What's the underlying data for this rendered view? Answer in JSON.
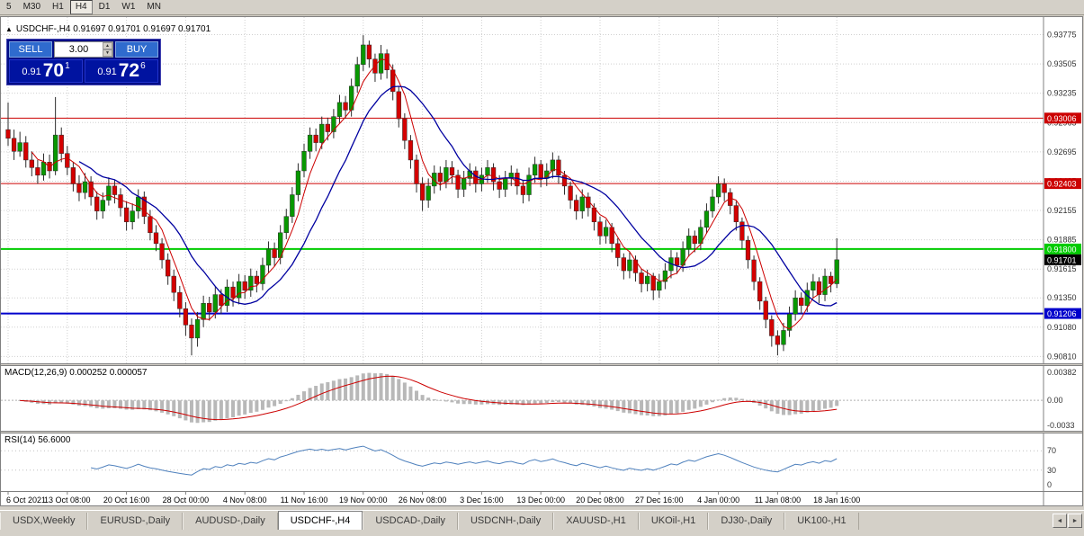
{
  "toolbar": {
    "timeframes": [
      {
        "label": "5",
        "active": false
      },
      {
        "label": "M30",
        "active": false
      },
      {
        "label": "H1",
        "active": false
      },
      {
        "label": "H4",
        "active": true
      },
      {
        "label": "D1",
        "active": false
      },
      {
        "label": "W1",
        "active": false
      },
      {
        "label": "MN",
        "active": false
      }
    ]
  },
  "chart": {
    "ohlc_line": "USDCHF-,H4 0.91697 0.91701 0.91697 0.91701"
  },
  "trade_panel": {
    "sell_label": "SELL",
    "buy_label": "BUY",
    "volume": "3.00",
    "bid_prefix": "0.91",
    "bid_big": "70",
    "bid_sup": "1",
    "ask_prefix": "0.91",
    "ask_big": "72",
    "ask_sup": "6"
  },
  "icons": {
    "collapse": "▲",
    "scroll_left": "◄",
    "scroll_right": "►",
    "spin_up": "▲",
    "spin_down": "▼"
  },
  "price_axis": {
    "labels": [
      "0.93775",
      "0.93505",
      "0.93235",
      "0.92965",
      "0.92695",
      "0.92425",
      "0.92155",
      "0.91885",
      "0.91615",
      "0.91350",
      "0.91080",
      "0.90810"
    ]
  },
  "hlines": [
    {
      "value": 0.93006,
      "label": "0.93006",
      "color": "#cc0000",
      "width": 1
    },
    {
      "value": 0.92403,
      "label": "0.92403",
      "color": "#cc0000",
      "width": 1
    },
    {
      "value": 0.918,
      "label": "0.91800",
      "color": "#00cc00",
      "width": 2
    },
    {
      "value": 0.91206,
      "label": "0.91206",
      "color": "#0000cc",
      "width": 2
    }
  ],
  "current_price": {
    "value": 0.91701,
    "label": "0.91701",
    "color": "#000000"
  },
  "time_axis": {
    "labels": [
      {
        "text": "6 Oct 2021",
        "index": 0
      },
      {
        "text": "13 Oct 08:00",
        "index": 10
      },
      {
        "text": "20 Oct 16:00",
        "index": 20
      },
      {
        "text": "28 Oct 00:00",
        "index": 30
      },
      {
        "text": "4 Nov 08:00",
        "index": 40
      },
      {
        "text": "11 Nov 16:00",
        "index": 50
      },
      {
        "text": "19 Nov 00:00",
        "index": 60
      },
      {
        "text": "26 Nov 08:00",
        "index": 70
      },
      {
        "text": "3 Dec 16:00",
        "index": 80
      },
      {
        "text": "13 Dec 00:00",
        "index": 90
      },
      {
        "text": "20 Dec 08:00",
        "index": 100
      },
      {
        "text": "27 Dec 16:00",
        "index": 110
      },
      {
        "text": "4 Jan 00:00",
        "index": 120
      },
      {
        "text": "11 Jan 08:00",
        "index": 130
      },
      {
        "text": "18 Jan 16:00",
        "index": 140
      }
    ]
  },
  "indicators": {
    "macd": {
      "header": "MACD(12,26,9) 0.000252 0.000057",
      "axis_labels": [
        "0.00382",
        "0.00",
        "-0.0033"
      ]
    },
    "rsi": {
      "header": "RSI(14) 56.6000",
      "axis_labels": [
        "70",
        "30",
        "0"
      ],
      "levels": [
        70,
        30
      ]
    }
  },
  "tabs": {
    "items": [
      {
        "label": "USDX,Weekly",
        "active": false
      },
      {
        "label": "EURUSD-,Daily",
        "active": false
      },
      {
        "label": "AUDUSD-,Daily",
        "active": false
      },
      {
        "label": "USDCHF-,H4",
        "active": true
      },
      {
        "label": "USDCAD-,Daily",
        "active": false
      },
      {
        "label": "USDCNH-,Daily",
        "active": false
      },
      {
        "label": "XAUUSD-,H1",
        "active": false
      },
      {
        "label": "UKOil-,H1",
        "active": false
      },
      {
        "label": "DJ30-,Daily",
        "active": false
      },
      {
        "label": "UK100-,H1",
        "active": false
      }
    ]
  },
  "chart_data": {
    "type": "candlestick",
    "symbol": "USDCHF-",
    "timeframe": "H4",
    "current_bar": {
      "open": 0.91697,
      "high": 0.91701,
      "low": 0.91697,
      "close": 0.91701
    },
    "last_price": 0.91701,
    "ylim": [
      0.9078,
      0.9392
    ],
    "x_labels": [
      "6 Oct 2021",
      "13 Oct 08:00",
      "20 Oct 16:00",
      "28 Oct 00:00",
      "4 Nov 08:00",
      "11 Nov 16:00",
      "19 Nov 00:00",
      "26 Nov 08:00",
      "3 Dec 16:00",
      "13 Dec 00:00",
      "20 Dec 08:00",
      "27 Dec 16:00",
      "4 Jan 00:00",
      "11 Jan 08:00",
      "18 Jan 16:00"
    ],
    "colors": {
      "up": "#089800",
      "down": "#d40000",
      "wick": "#2b2b2b",
      "ma_fast": "#cc0000",
      "ma_slow": "#0000a0",
      "macd_hist": "#b8b8b8",
      "macd_signal": "#cc0000",
      "rsi": "#4f81bd",
      "grid": "#d0d0d0"
    },
    "ohlc": [
      [
        0.929,
        0.9315,
        0.9275,
        0.9282
      ],
      [
        0.9282,
        0.929,
        0.9262,
        0.927
      ],
      [
        0.927,
        0.9288,
        0.9265,
        0.9278
      ],
      [
        0.9278,
        0.9284,
        0.9255,
        0.9262
      ],
      [
        0.9262,
        0.927,
        0.9247,
        0.9255
      ],
      [
        0.9255,
        0.9262,
        0.924,
        0.9248
      ],
      [
        0.9248,
        0.9268,
        0.9243,
        0.926
      ],
      [
        0.926,
        0.9267,
        0.9245,
        0.9252
      ],
      [
        0.9252,
        0.932,
        0.9248,
        0.9285
      ],
      [
        0.9285,
        0.9292,
        0.926,
        0.9268
      ],
      [
        0.9268,
        0.9275,
        0.9248,
        0.9255
      ],
      [
        0.9255,
        0.926,
        0.9233,
        0.924
      ],
      [
        0.924,
        0.9248,
        0.9224,
        0.9232
      ],
      [
        0.9232,
        0.925,
        0.9226,
        0.9242
      ],
      [
        0.9242,
        0.9247,
        0.922,
        0.9228
      ],
      [
        0.9228,
        0.9233,
        0.9207,
        0.9215
      ],
      [
        0.9215,
        0.9232,
        0.9208,
        0.9225
      ],
      [
        0.9225,
        0.9246,
        0.922,
        0.9238
      ],
      [
        0.9238,
        0.9244,
        0.9222,
        0.923
      ],
      [
        0.923,
        0.9236,
        0.921,
        0.9218
      ],
      [
        0.9218,
        0.9224,
        0.9197,
        0.9205
      ],
      [
        0.9205,
        0.9222,
        0.9198,
        0.9215
      ],
      [
        0.9215,
        0.9235,
        0.9208,
        0.9228
      ],
      [
        0.9228,
        0.9233,
        0.9203,
        0.921
      ],
      [
        0.921,
        0.9216,
        0.9188,
        0.9195
      ],
      [
        0.9195,
        0.9202,
        0.9178,
        0.9185
      ],
      [
        0.9185,
        0.919,
        0.9162,
        0.917
      ],
      [
        0.917,
        0.9176,
        0.9147,
        0.9155
      ],
      [
        0.9155,
        0.9161,
        0.9132,
        0.914
      ],
      [
        0.914,
        0.9146,
        0.9117,
        0.9125
      ],
      [
        0.9125,
        0.9131,
        0.91,
        0.911
      ],
      [
        0.911,
        0.9116,
        0.9082,
        0.9098
      ],
      [
        0.9098,
        0.9122,
        0.909,
        0.9115
      ],
      [
        0.9115,
        0.9137,
        0.9108,
        0.913
      ],
      [
        0.913,
        0.9136,
        0.9114,
        0.9122
      ],
      [
        0.9122,
        0.9145,
        0.9116,
        0.9138
      ],
      [
        0.9138,
        0.9143,
        0.912,
        0.9128
      ],
      [
        0.9128,
        0.9152,
        0.9122,
        0.9145
      ],
      [
        0.9145,
        0.915,
        0.9127,
        0.9135
      ],
      [
        0.9135,
        0.9157,
        0.9129,
        0.915
      ],
      [
        0.915,
        0.9156,
        0.9134,
        0.9142
      ],
      [
        0.9142,
        0.9162,
        0.9136,
        0.9155
      ],
      [
        0.9155,
        0.916,
        0.914,
        0.9148
      ],
      [
        0.9148,
        0.9172,
        0.9142,
        0.9165
      ],
      [
        0.9165,
        0.9187,
        0.9158,
        0.918
      ],
      [
        0.918,
        0.9186,
        0.9164,
        0.9172
      ],
      [
        0.9172,
        0.9202,
        0.9166,
        0.9195
      ],
      [
        0.9195,
        0.9217,
        0.9189,
        0.921
      ],
      [
        0.921,
        0.9237,
        0.9204,
        0.923
      ],
      [
        0.923,
        0.9259,
        0.9224,
        0.9252
      ],
      [
        0.9252,
        0.9277,
        0.9246,
        0.927
      ],
      [
        0.927,
        0.9292,
        0.9263,
        0.9285
      ],
      [
        0.9285,
        0.9291,
        0.927,
        0.9278
      ],
      [
        0.9278,
        0.9302,
        0.9272,
        0.9295
      ],
      [
        0.9295,
        0.9301,
        0.928,
        0.9288
      ],
      [
        0.9288,
        0.9309,
        0.9282,
        0.9302
      ],
      [
        0.9302,
        0.9322,
        0.9296,
        0.9315
      ],
      [
        0.9315,
        0.9321,
        0.93,
        0.9308
      ],
      [
        0.9308,
        0.9337,
        0.9302,
        0.933
      ],
      [
        0.933,
        0.9357,
        0.9324,
        0.935
      ],
      [
        0.935,
        0.9377,
        0.9344,
        0.9368
      ],
      [
        0.9368,
        0.9372,
        0.9347,
        0.9355
      ],
      [
        0.9355,
        0.936,
        0.9334,
        0.9342
      ],
      [
        0.9342,
        0.9368,
        0.9336,
        0.936
      ],
      [
        0.936,
        0.9364,
        0.9337,
        0.9345
      ],
      [
        0.9345,
        0.935,
        0.9317,
        0.9325
      ],
      [
        0.9325,
        0.933,
        0.9292,
        0.93
      ],
      [
        0.93,
        0.9305,
        0.9272,
        0.928
      ],
      [
        0.928,
        0.9285,
        0.9254,
        0.9262
      ],
      [
        0.9262,
        0.9267,
        0.9232,
        0.924
      ],
      [
        0.924,
        0.9246,
        0.9215,
        0.9225
      ],
      [
        0.9225,
        0.9245,
        0.9218,
        0.9238
      ],
      [
        0.9238,
        0.9257,
        0.9231,
        0.925
      ],
      [
        0.925,
        0.9256,
        0.9234,
        0.9242
      ],
      [
        0.9242,
        0.9262,
        0.9236,
        0.9255
      ],
      [
        0.9255,
        0.9261,
        0.924,
        0.9248
      ],
      [
        0.9248,
        0.9253,
        0.9227,
        0.9235
      ],
      [
        0.9235,
        0.9252,
        0.9228,
        0.9245
      ],
      [
        0.9245,
        0.9259,
        0.9238,
        0.9252
      ],
      [
        0.9252,
        0.9256,
        0.9232,
        0.924
      ],
      [
        0.924,
        0.9255,
        0.9233,
        0.9248
      ],
      [
        0.9248,
        0.9262,
        0.9241,
        0.9255
      ],
      [
        0.9255,
        0.9259,
        0.9234,
        0.9242
      ],
      [
        0.9242,
        0.9248,
        0.9227,
        0.9235
      ],
      [
        0.9235,
        0.9252,
        0.9228,
        0.9245
      ],
      [
        0.9245,
        0.9257,
        0.9238,
        0.925
      ],
      [
        0.925,
        0.9254,
        0.923,
        0.9238
      ],
      [
        0.9238,
        0.9243,
        0.9222,
        0.923
      ],
      [
        0.923,
        0.9255,
        0.9224,
        0.9248
      ],
      [
        0.9248,
        0.9265,
        0.9241,
        0.9258
      ],
      [
        0.9258,
        0.9262,
        0.9237,
        0.9245
      ],
      [
        0.9245,
        0.9259,
        0.9238,
        0.9252
      ],
      [
        0.9252,
        0.9269,
        0.9245,
        0.9262
      ],
      [
        0.9262,
        0.9266,
        0.924,
        0.9248
      ],
      [
        0.9248,
        0.9252,
        0.923,
        0.9238
      ],
      [
        0.9238,
        0.9242,
        0.9217,
        0.9225
      ],
      [
        0.9225,
        0.923,
        0.9207,
        0.9215
      ],
      [
        0.9215,
        0.9235,
        0.9208,
        0.9228
      ],
      [
        0.9228,
        0.9232,
        0.921,
        0.9218
      ],
      [
        0.9218,
        0.9222,
        0.9197,
        0.9205
      ],
      [
        0.9205,
        0.921,
        0.9184,
        0.9192
      ],
      [
        0.9192,
        0.9207,
        0.9185,
        0.92
      ],
      [
        0.92,
        0.9204,
        0.9177,
        0.9185
      ],
      [
        0.9185,
        0.919,
        0.9164,
        0.9172
      ],
      [
        0.9172,
        0.9176,
        0.9152,
        0.916
      ],
      [
        0.916,
        0.9177,
        0.9153,
        0.917
      ],
      [
        0.917,
        0.9174,
        0.915,
        0.9158
      ],
      [
        0.9158,
        0.9162,
        0.914,
        0.9148
      ],
      [
        0.9148,
        0.9161,
        0.9141,
        0.9155
      ],
      [
        0.9155,
        0.9158,
        0.9133,
        0.9142
      ],
      [
        0.9142,
        0.9157,
        0.9135,
        0.915
      ],
      [
        0.915,
        0.9167,
        0.9143,
        0.916
      ],
      [
        0.916,
        0.9179,
        0.9153,
        0.9172
      ],
      [
        0.9172,
        0.9177,
        0.9157,
        0.9165
      ],
      [
        0.9165,
        0.9187,
        0.9159,
        0.918
      ],
      [
        0.918,
        0.9199,
        0.9173,
        0.9192
      ],
      [
        0.9192,
        0.9197,
        0.9177,
        0.9185
      ],
      [
        0.9185,
        0.9207,
        0.9179,
        0.92
      ],
      [
        0.92,
        0.9222,
        0.9194,
        0.9215
      ],
      [
        0.9215,
        0.9235,
        0.9209,
        0.9228
      ],
      [
        0.9228,
        0.9247,
        0.9222,
        0.924
      ],
      [
        0.924,
        0.9245,
        0.9224,
        0.9232
      ],
      [
        0.9232,
        0.9236,
        0.9212,
        0.922
      ],
      [
        0.922,
        0.9224,
        0.9197,
        0.9205
      ],
      [
        0.9205,
        0.9209,
        0.918,
        0.9188
      ],
      [
        0.9188,
        0.9192,
        0.9162,
        0.917
      ],
      [
        0.917,
        0.9174,
        0.9142,
        0.915
      ],
      [
        0.915,
        0.9154,
        0.9124,
        0.9132
      ],
      [
        0.9132,
        0.9136,
        0.9107,
        0.9115
      ],
      [
        0.9115,
        0.9119,
        0.909,
        0.91
      ],
      [
        0.91,
        0.9105,
        0.9082,
        0.9092
      ],
      [
        0.9092,
        0.9112,
        0.9086,
        0.9105
      ],
      [
        0.9105,
        0.9127,
        0.9099,
        0.912
      ],
      [
        0.912,
        0.9142,
        0.9114,
        0.9135
      ],
      [
        0.9135,
        0.914,
        0.912,
        0.9128
      ],
      [
        0.9128,
        0.9149,
        0.9122,
        0.9142
      ],
      [
        0.9142,
        0.9157,
        0.9135,
        0.915
      ],
      [
        0.915,
        0.9154,
        0.913,
        0.9138
      ],
      [
        0.9138,
        0.9162,
        0.9132,
        0.9155
      ],
      [
        0.9155,
        0.9159,
        0.914,
        0.9148
      ],
      [
        0.9148,
        0.919,
        0.9144,
        0.91701
      ]
    ]
  }
}
